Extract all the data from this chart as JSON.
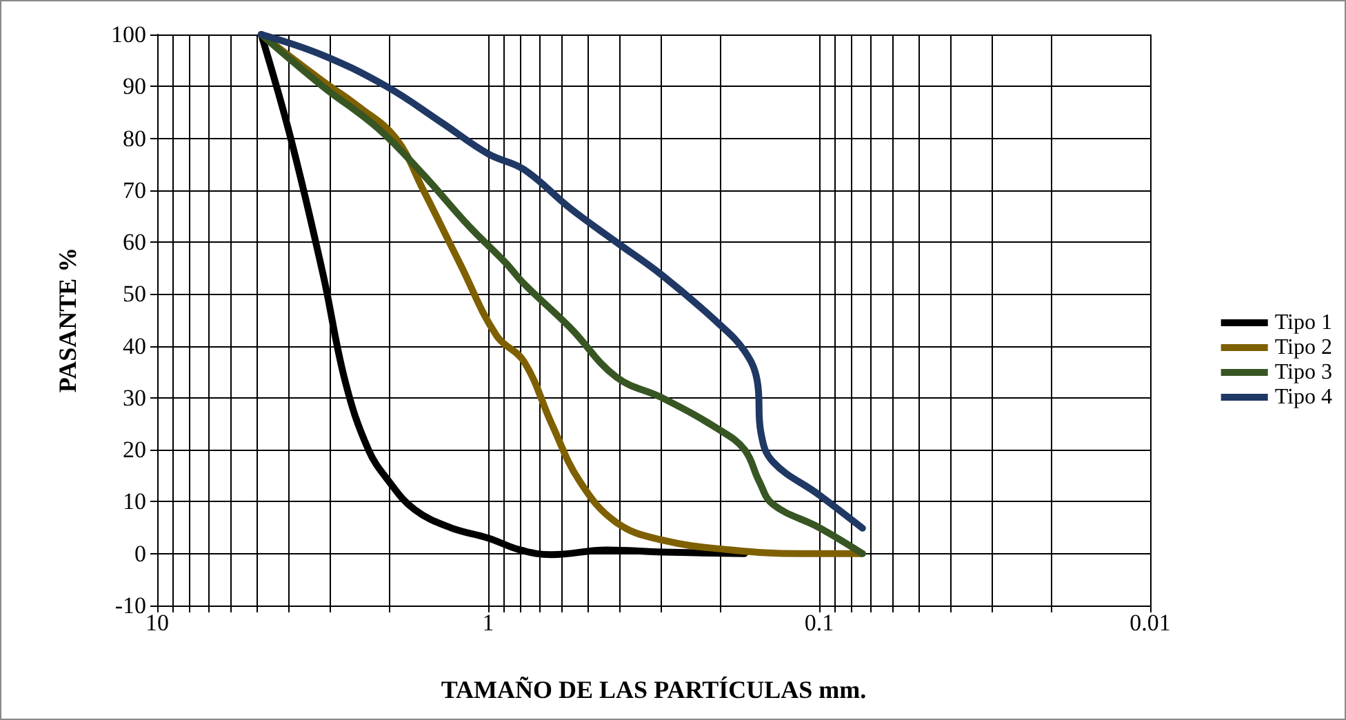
{
  "chart_data": {
    "type": "line",
    "xlabel": "TAMAÑO DE LAS PARTÍCULAS mm.",
    "ylabel": "PASANTE %",
    "log": "x",
    "xlim": [
      10,
      0.01
    ],
    "xticks": [
      10,
      {
        "value": 9,
        "label": null
      },
      {
        "value": 8,
        "label": null
      },
      {
        "value": 7,
        "label": null
      },
      {
        "value": 6,
        "label": null
      },
      {
        "value": 5,
        "label": null
      },
      {
        "value": 4,
        "label": null
      },
      {
        "value": 3,
        "label": null
      },
      {
        "value": 2,
        "label": null
      },
      1,
      {
        "value": 0.9,
        "label": null
      },
      {
        "value": 0.8,
        "label": null
      },
      {
        "value": 0.7,
        "label": null
      },
      {
        "value": 0.6,
        "label": null
      },
      {
        "value": 0.5,
        "label": null
      },
      {
        "value": 0.4,
        "label": null
      },
      {
        "value": 0.3,
        "label": null
      },
      {
        "value": 0.2,
        "label": null
      },
      0.1,
      {
        "value": 0.09,
        "label": null
      },
      {
        "value": 0.08,
        "label": null
      },
      {
        "value": 0.07,
        "label": null
      },
      {
        "value": 0.06,
        "label": null
      },
      {
        "value": 0.05,
        "label": null
      },
      {
        "value": 0.04,
        "label": null
      },
      {
        "value": 0.03,
        "label": null
      },
      {
        "value": 0.02,
        "label": null
      },
      0.01
    ],
    "ylim": [
      -10,
      100
    ],
    "yticks": [
      -10,
      0,
      10,
      20,
      30,
      40,
      50,
      60,
      70,
      80,
      90,
      100
    ],
    "grid": true,
    "legend": "right",
    "marker": "none",
    "line_style": "solid",
    "series": [
      {
        "name": "Tipo 1",
        "color": "#000000",
        "x": [
          4.85,
          3.95,
          3.16,
          2.7,
          2.3,
          2.0,
          1.67,
          1.3,
          1.0,
          0.8,
          0.643,
          0.438,
          0.298,
          0.168
        ],
        "values": [
          100,
          80,
          54,
          33,
          20,
          14,
          8.5,
          5,
          3,
          0.7,
          -0.2,
          0.7,
          0.3,
          0
        ]
      },
      {
        "name": "Tipo 2",
        "color": "#7f6000",
        "x": [
          4.85,
          3.16,
          2.45,
          1.9,
          1.57,
          1.22,
          0.944,
          0.78,
          0.643,
          0.53,
          0.41,
          0.298,
          0.184,
          0.114,
          0.074
        ],
        "values": [
          100,
          91,
          86,
          80,
          70,
          56,
          42,
          37,
          25,
          14,
          6,
          2.6,
          0.7,
          0,
          0
        ]
      },
      {
        "name": "Tipo 3",
        "color": "#375623",
        "x": [
          4.85,
          3.16,
          2.16,
          1.57,
          1.14,
          0.885,
          0.78,
          0.565,
          0.41,
          0.298,
          0.202,
          0.168,
          0.152,
          0.138,
          0.1,
          0.074
        ],
        "values": [
          100,
          90,
          82,
          73,
          63,
          56,
          52,
          43.5,
          34,
          30,
          24,
          20,
          14,
          9.5,
          5,
          0
        ]
      },
      {
        "name": "Tipo 4",
        "color": "#1f3864",
        "x": [
          4.85,
          3.16,
          2.03,
          1.38,
          1.0,
          0.78,
          0.565,
          0.41,
          0.298,
          0.202,
          0.168,
          0.154,
          0.15,
          0.138,
          0.1,
          0.074
        ],
        "values": [
          100,
          96,
          90,
          83,
          77,
          74,
          66.5,
          60,
          53.6,
          44.4,
          39,
          33.4,
          23.3,
          17.7,
          11.3,
          4.9
        ]
      }
    ]
  }
}
